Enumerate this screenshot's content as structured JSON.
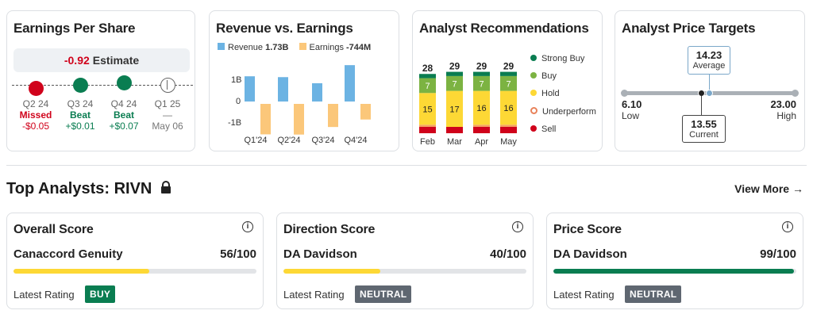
{
  "eps": {
    "title": "Earnings Per Share",
    "estimate_value": "-0.92",
    "estimate_label": "Estimate",
    "quarters": [
      {
        "q": "Q2 24",
        "result": "Missed",
        "value": "-$0.05",
        "status": "missed"
      },
      {
        "q": "Q3 24",
        "result": "Beat",
        "value": "+$0.01",
        "status": "beat"
      },
      {
        "q": "Q4 24",
        "result": "Beat",
        "value": "+$0.07",
        "status": "beat"
      },
      {
        "q": "Q1 25",
        "result": "—",
        "value": "May 06",
        "status": "upcoming"
      }
    ]
  },
  "revenue": {
    "title": "Revenue vs. Earnings",
    "legend_revenue_label": "Revenue",
    "legend_revenue_value": "1.73B",
    "legend_earnings_label": "Earnings",
    "legend_earnings_value": "-744M",
    "y_ticks": [
      "1B",
      "0",
      "-1B"
    ],
    "colors": {
      "revenue": "#6cb3e3",
      "earnings": "#fbc77a"
    }
  },
  "recommendations": {
    "title": "Analyst Recommendations",
    "legend": [
      {
        "label": "Strong Buy",
        "color": "#0a7d51"
      },
      {
        "label": "Buy",
        "color": "#7cb342"
      },
      {
        "label": "Hold",
        "color": "#fdd835"
      },
      {
        "label": "Underperform",
        "color": "#f4a261"
      },
      {
        "label": "Sell",
        "color": "#d0021b"
      }
    ]
  },
  "price_targets": {
    "title": "Analyst Price Targets",
    "average_value": "14.23",
    "average_label": "Average",
    "current_value": "13.55",
    "current_label": "Current",
    "low_value": "6.10",
    "low_label": "Low",
    "high_value": "23.00",
    "high_label": "High"
  },
  "top_analysts": {
    "title": "Top Analysts: RIVN",
    "view_more": "View More →",
    "cards": [
      {
        "title": "Overall Score",
        "firm": "Canaccord Genuity",
        "score": "56/100",
        "score_fraction": 0.56,
        "fill_color": "#fdd835",
        "rating_label": "Latest Rating",
        "rating": "BUY",
        "rating_color": "#0a7d51"
      },
      {
        "title": "Direction Score",
        "firm": "DA Davidson",
        "score": "40/100",
        "score_fraction": 0.4,
        "fill_color": "#fdd835",
        "rating_label": "Latest Rating",
        "rating": "NEUTRAL",
        "rating_color": "#5f6771"
      },
      {
        "title": "Price Score",
        "firm": "DA Davidson",
        "score": "99/100",
        "score_fraction": 0.99,
        "fill_color": "#0a7d51",
        "rating_label": "Latest Rating",
        "rating": "NEUTRAL",
        "rating_color": "#5f6771"
      }
    ]
  },
  "chart_data": [
    {
      "type": "bar",
      "categories": [
        "Q1'24",
        "Q2'24",
        "Q3'24",
        "Q4'24"
      ],
      "series": [
        {
          "name": "Revenue",
          "values": [
            1.2,
            1.16,
            0.87,
            1.73
          ]
        },
        {
          "name": "Earnings",
          "values": [
            -1.45,
            -1.46,
            -1.1,
            -0.744
          ]
        }
      ],
      "ylim": [
        -1.6,
        1.8
      ],
      "ylabel": ""
    },
    {
      "type": "bar",
      "stacked": true,
      "categories": [
        "Feb",
        "Mar",
        "Apr",
        "May"
      ],
      "totals": [
        28,
        29,
        29,
        29
      ],
      "series": [
        {
          "name": "Strong Buy",
          "values": [
            2,
            2,
            2,
            2
          ]
        },
        {
          "name": "Buy",
          "values": [
            7,
            7,
            7,
            7
          ]
        },
        {
          "name": "Hold",
          "values": [
            15,
            17,
            16,
            16
          ]
        },
        {
          "name": "Underperform",
          "values": [
            1,
            0,
            1,
            1
          ]
        },
        {
          "name": "Sell",
          "values": [
            3,
            3,
            3,
            3
          ]
        }
      ],
      "data_labels": [
        {
          "buy": "7",
          "hold": "15"
        },
        {
          "buy": "7",
          "hold": "17"
        },
        {
          "buy": "7",
          "hold": "16"
        },
        {
          "buy": "7",
          "hold": "16"
        }
      ]
    }
  ]
}
